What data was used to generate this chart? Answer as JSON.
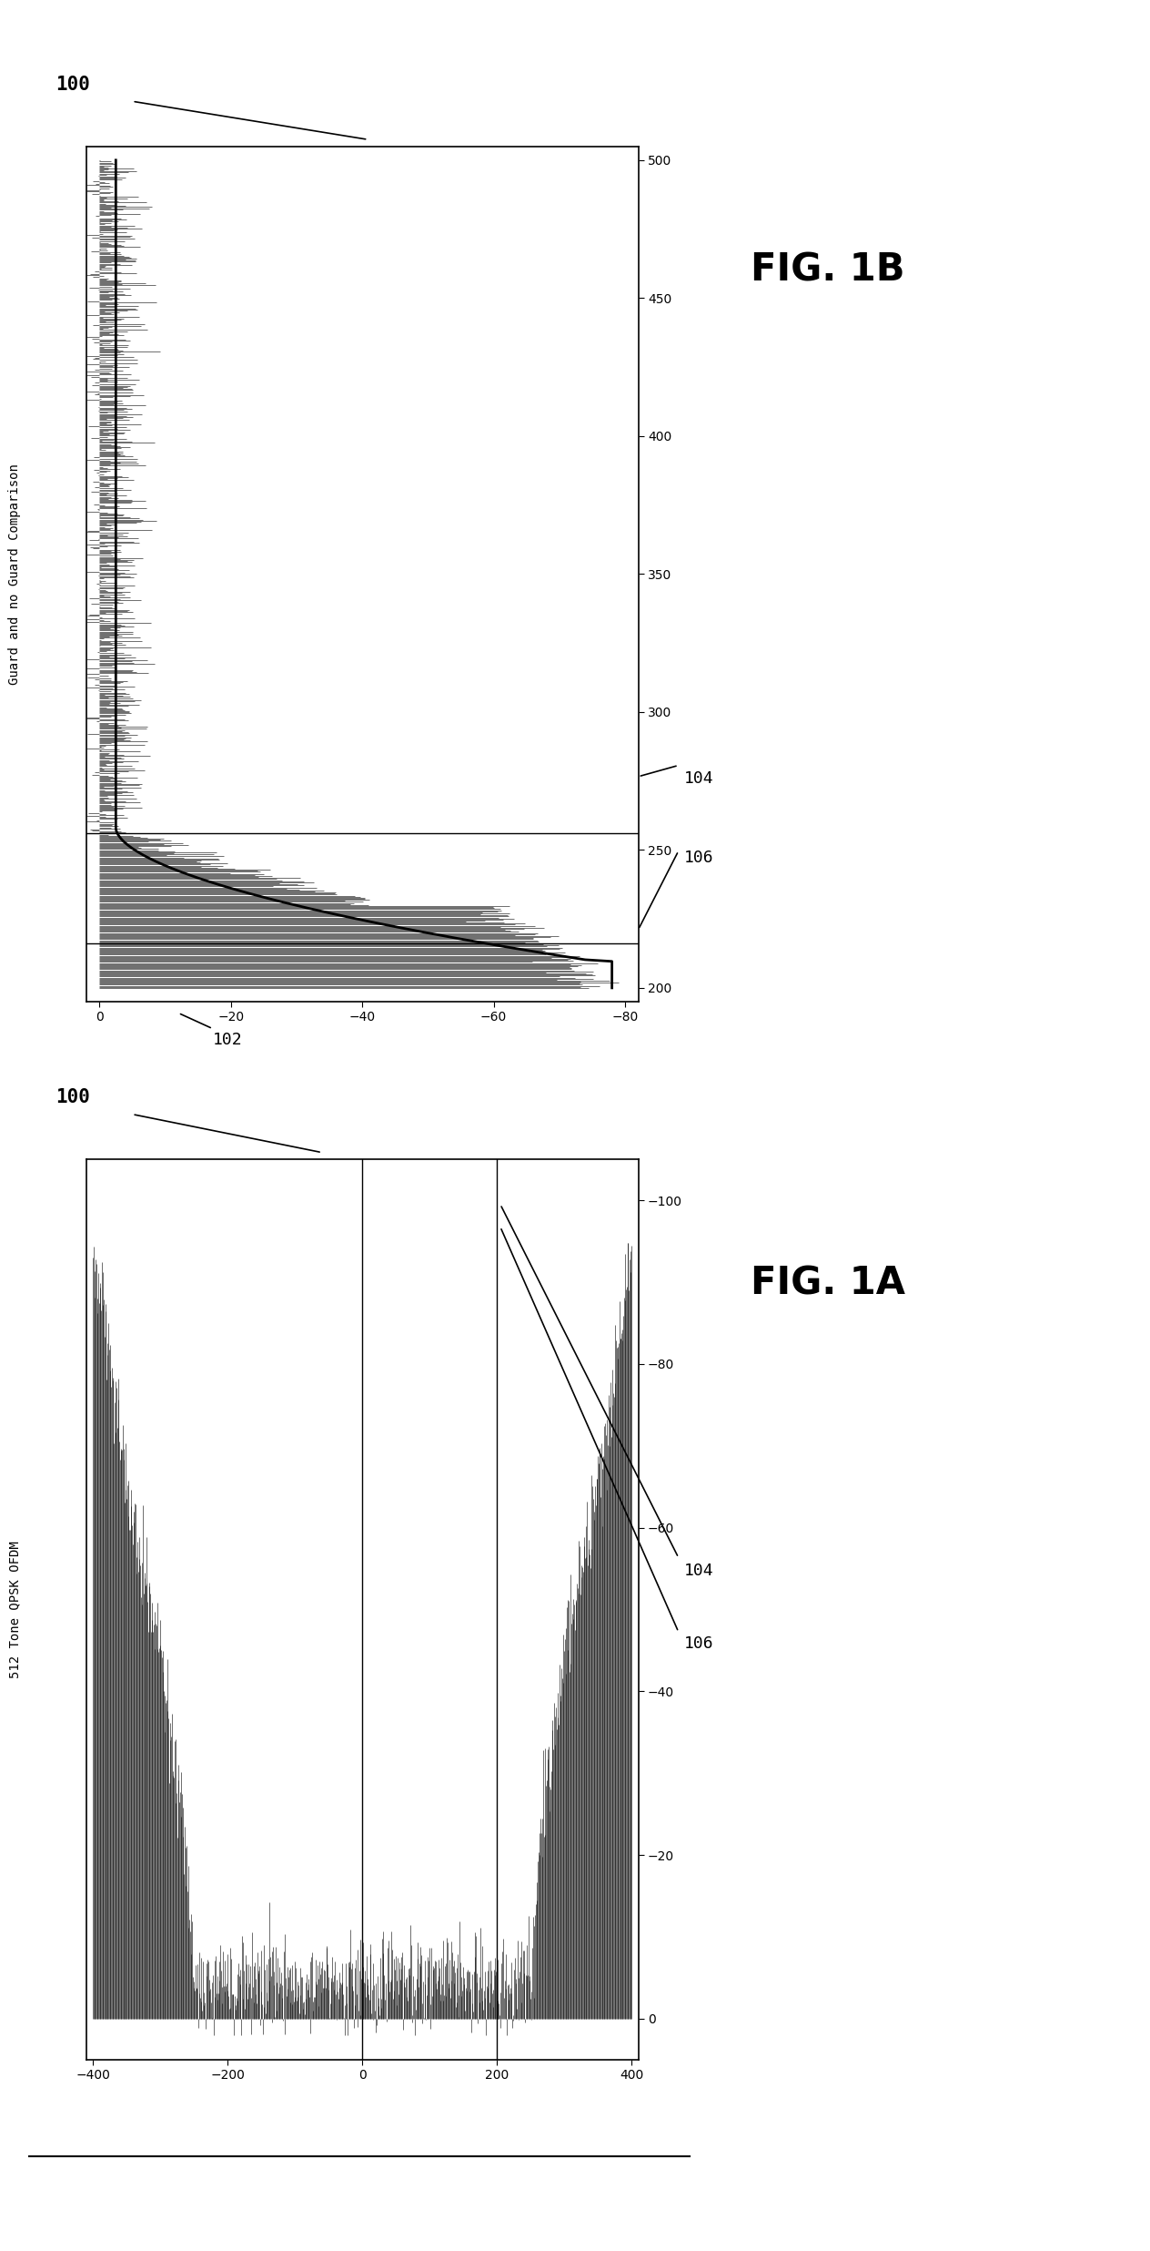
{
  "fig1b_title": "Guard and no Guard Comparison",
  "fig1b_xticks": [
    0,
    -20,
    -40,
    -60,
    -80
  ],
  "fig1b_yticks": [
    200,
    250,
    300,
    350,
    400,
    450,
    500
  ],
  "fig1b_xlim": [
    2,
    -82
  ],
  "fig1b_ylim": [
    195,
    505
  ],
  "fig1a_title": "512 Tone QPSK OFDM",
  "fig1a_xticks": [
    -400,
    -200,
    0,
    200,
    400
  ],
  "fig1a_yticks": [
    0,
    -20,
    -40,
    -60,
    -80,
    -100
  ],
  "fig1a_xlim": [
    -410,
    410
  ],
  "fig1a_ylim": [
    5,
    -105
  ],
  "label_100": "100",
  "label_102": "102",
  "label_104": "104",
  "label_106": "106",
  "fig1a_caption": "FIG. 1A",
  "fig1b_caption": "FIG. 1B",
  "bg_color": "#ffffff",
  "seed1a": 42,
  "seed1b": 77,
  "fig1b_band_edge1": 256,
  "fig1b_band_edge2": 216,
  "fig1a_vline1": 0,
  "fig1a_vline2": 200
}
